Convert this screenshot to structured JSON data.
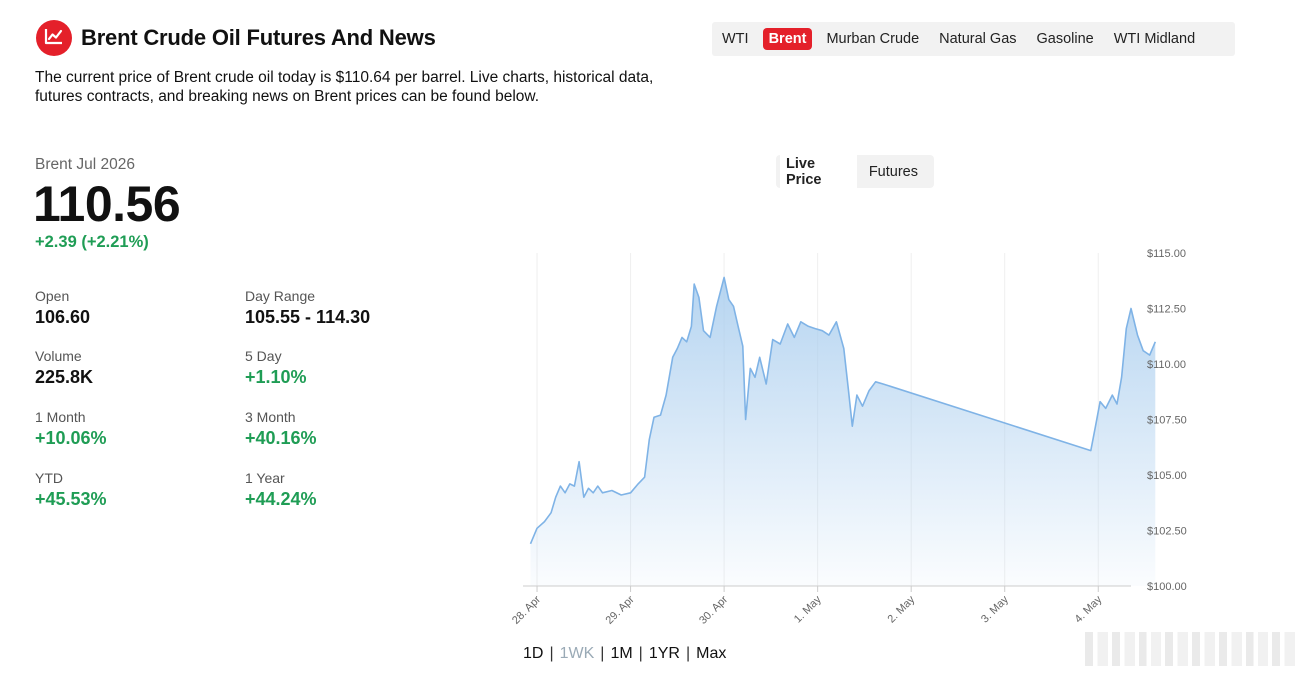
{
  "header": {
    "title": "Brent Crude Oil Futures And News",
    "intro": "The current price of Brent crude oil today is $110.64 per barrel. Live charts, historical data, futures contracts, and breaking news on Brent prices can be found below.",
    "logo_icon": "line-chart-icon",
    "accent_color": "#e4202a"
  },
  "nav": {
    "tabs": [
      {
        "label": "WTI",
        "active": false
      },
      {
        "label": "Brent",
        "active": true
      },
      {
        "label": "Murban Crude",
        "active": false
      },
      {
        "label": "Natural Gas",
        "active": false
      },
      {
        "label": "Gasoline",
        "active": false
      },
      {
        "label": "WTI Midland",
        "active": false
      }
    ]
  },
  "quote": {
    "instrument": "Brent Jul 2026",
    "price": "110.56",
    "change": "+2.39 (+2.21%)",
    "positive_color": "#1f9d55",
    "stats": [
      {
        "label": "Open",
        "value": "106.60",
        "positive": false
      },
      {
        "label": "Day Range",
        "value": "105.55 - 114.30",
        "positive": false
      },
      {
        "label": "Volume",
        "value": "225.8K",
        "positive": false
      },
      {
        "label": "5 Day",
        "value": "+1.10%",
        "positive": true
      },
      {
        "label": "1 Month",
        "value": "+10.06%",
        "positive": true
      },
      {
        "label": "3 Month",
        "value": "+40.16%",
        "positive": true
      },
      {
        "label": "YTD",
        "value": "+45.53%",
        "positive": true
      },
      {
        "label": "1 Year",
        "value": "+44.24%",
        "positive": true
      }
    ]
  },
  "chart_toggle": {
    "live_label": "Live Price",
    "futures_label": "Futures",
    "active": "Live Price"
  },
  "range": {
    "options": [
      "1D",
      "1WK",
      "1M",
      "1YR",
      "Max"
    ],
    "active": "1WK"
  },
  "chart_data": {
    "type": "area",
    "line_color": "#7fb3e6",
    "fill_color": "#a9cdee",
    "ylim": [
      100,
      115
    ],
    "y_ticks": [
      {
        "value": 115,
        "label": "$115.00"
      },
      {
        "value": 112.5,
        "label": "$112.50"
      },
      {
        "value": 110,
        "label": "$110.00"
      },
      {
        "value": 107.5,
        "label": "$107.50"
      },
      {
        "value": 105,
        "label": "$105.00"
      },
      {
        "value": 102.5,
        "label": "$102.50"
      },
      {
        "value": 100,
        "label": "$100.00"
      }
    ],
    "x_range": [
      -0.15,
      6.35
    ],
    "x_ticks": [
      {
        "value": 0,
        "label": "28. Apr"
      },
      {
        "value": 1,
        "label": "29. Apr"
      },
      {
        "value": 2,
        "label": "30. Apr"
      },
      {
        "value": 3,
        "label": "1. May"
      },
      {
        "value": 4,
        "label": "2. May"
      },
      {
        "value": 5,
        "label": "3. May"
      },
      {
        "value": 6,
        "label": "4. May"
      }
    ],
    "points": [
      [
        -0.07,
        101.9
      ],
      [
        0.0,
        102.6
      ],
      [
        0.08,
        102.9
      ],
      [
        0.15,
        103.3
      ],
      [
        0.2,
        104.0
      ],
      [
        0.25,
        104.5
      ],
      [
        0.3,
        104.2
      ],
      [
        0.35,
        104.6
      ],
      [
        0.4,
        104.5
      ],
      [
        0.45,
        105.6
      ],
      [
        0.5,
        104.0
      ],
      [
        0.55,
        104.4
      ],
      [
        0.6,
        104.2
      ],
      [
        0.65,
        104.5
      ],
      [
        0.7,
        104.2
      ],
      [
        0.8,
        104.3
      ],
      [
        0.9,
        104.1
      ],
      [
        1.0,
        104.2
      ],
      [
        1.08,
        104.6
      ],
      [
        1.15,
        104.9
      ],
      [
        1.2,
        106.6
      ],
      [
        1.25,
        107.6
      ],
      [
        1.32,
        107.7
      ],
      [
        1.38,
        108.6
      ],
      [
        1.45,
        110.3
      ],
      [
        1.5,
        110.7
      ],
      [
        1.55,
        111.2
      ],
      [
        1.6,
        111.0
      ],
      [
        1.65,
        111.7
      ],
      [
        1.68,
        113.6
      ],
      [
        1.73,
        113.0
      ],
      [
        1.78,
        111.5
      ],
      [
        1.85,
        111.2
      ],
      [
        1.92,
        112.6
      ],
      [
        2.0,
        113.9
      ],
      [
        2.05,
        112.9
      ],
      [
        2.1,
        112.6
      ],
      [
        2.15,
        111.7
      ],
      [
        2.2,
        110.8
      ],
      [
        2.23,
        107.5
      ],
      [
        2.28,
        109.8
      ],
      [
        2.33,
        109.4
      ],
      [
        2.38,
        110.3
      ],
      [
        2.45,
        109.1
      ],
      [
        2.52,
        111.1
      ],
      [
        2.6,
        110.9
      ],
      [
        2.68,
        111.8
      ],
      [
        2.75,
        111.2
      ],
      [
        2.82,
        111.9
      ],
      [
        2.9,
        111.7
      ],
      [
        2.97,
        111.6
      ],
      [
        3.05,
        111.5
      ],
      [
        3.12,
        111.3
      ],
      [
        3.2,
        111.9
      ],
      [
        3.28,
        110.7
      ],
      [
        3.33,
        108.8
      ],
      [
        3.37,
        107.2
      ],
      [
        3.42,
        108.6
      ],
      [
        3.48,
        108.1
      ],
      [
        3.55,
        108.8
      ],
      [
        3.62,
        109.2
      ],
      [
        3.7,
        109.1
      ],
      [
        5.92,
        106.1
      ],
      [
        5.97,
        107.2
      ],
      [
        6.02,
        108.3
      ],
      [
        6.08,
        108.0
      ],
      [
        6.15,
        108.6
      ],
      [
        6.2,
        108.2
      ],
      [
        6.25,
        109.4
      ],
      [
        6.3,
        111.6
      ],
      [
        6.35,
        112.5
      ],
      [
        6.42,
        111.3
      ],
      [
        6.48,
        110.6
      ],
      [
        6.55,
        110.4
      ],
      [
        6.61,
        111.0
      ]
    ]
  }
}
